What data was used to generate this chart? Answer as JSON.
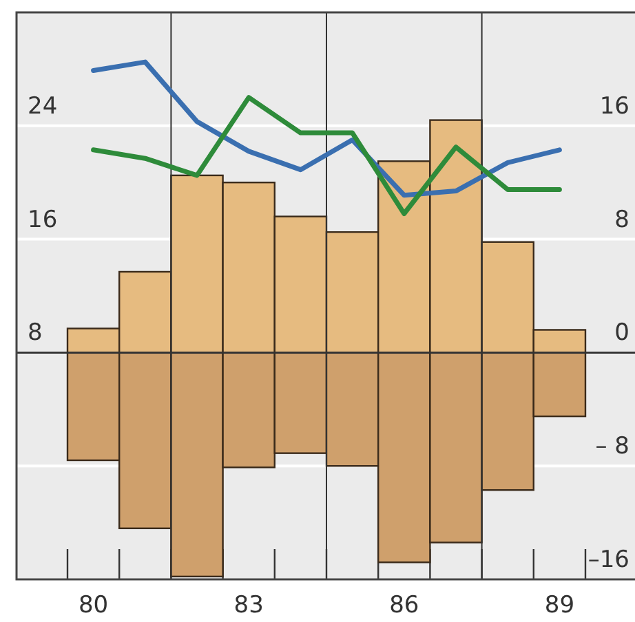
{
  "chart_data": {
    "type": "bar",
    "categories": [
      "80",
      null,
      null,
      "83",
      null,
      null,
      "86",
      null,
      null,
      "89"
    ],
    "series": [
      {
        "axis": "y2",
        "color": "#e6bb80",
        "values": [
          1.7,
          5.7,
          12.5,
          12.0,
          9.6,
          8.5,
          13.5,
          16.4,
          7.8,
          1.6
        ]
      },
      {
        "axis": "y2",
        "color": "#cfa06c",
        "values": [
          -7.6,
          -12.4,
          -15.8,
          -8.1,
          -7.1,
          -8.0,
          -14.8,
          -13.4,
          -9.7,
          -4.5
        ]
      },
      {
        "type": "line",
        "axis": "y",
        "color": "#3a6fb0",
        "values": [
          27.9,
          28.5,
          24.3,
          22.2,
          20.9,
          23.0,
          19.1,
          19.4,
          21.4,
          22.3
        ]
      },
      {
        "type": "line",
        "axis": "y",
        "color": "#2e8b3a",
        "values": [
          22.3,
          21.7,
          20.5,
          26.0,
          23.5,
          23.5,
          17.8,
          22.5,
          19.5,
          19.5
        ]
      }
    ],
    "ylim": [
      -8,
      32
    ],
    "yticks": [
      8,
      16,
      24
    ],
    "y2lim": [
      -16,
      24
    ],
    "y2ticks": [
      {
        "value": -16,
        "label": "–16"
      },
      {
        "value": -8,
        "label": "– 8"
      },
      0,
      8,
      16
    ],
    "stacked": true,
    "grid": true,
    "line_style": "solid",
    "marker": "none"
  }
}
